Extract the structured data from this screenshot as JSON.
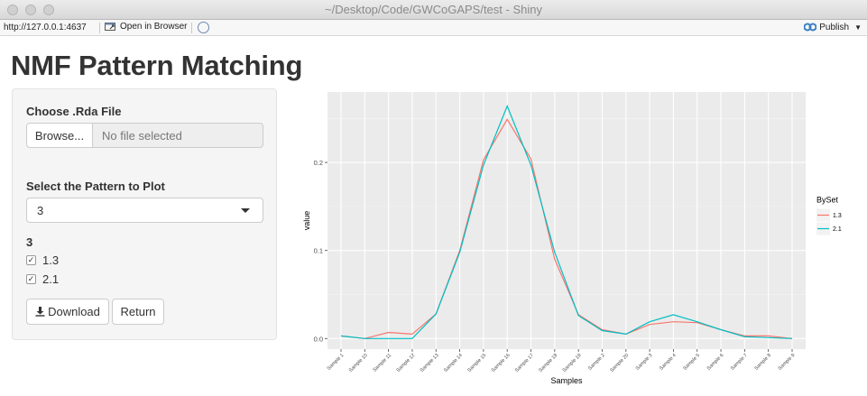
{
  "window": {
    "title": "~/Desktop/Code/GWCoGAPS/test - Shiny"
  },
  "toolbar": {
    "url": "http://127.0.0.1:4637",
    "open_in_browser": "Open in Browser",
    "publish": "Publish"
  },
  "page": {
    "title": "NMF Pattern Matching"
  },
  "sidebar": {
    "file_label": "Choose .Rda File",
    "browse_label": "Browse...",
    "file_placeholder": "No file selected",
    "pattern_label": "Select the Pattern to Plot",
    "pattern_value": "3",
    "group_label": "3",
    "checkboxes": [
      {
        "label": "1.3",
        "checked": true
      },
      {
        "label": "2.1",
        "checked": true
      }
    ],
    "download_label": "Download",
    "return_label": "Return"
  },
  "chart_data": {
    "type": "line",
    "xlabel": "Samples",
    "ylabel": "value",
    "categories": [
      "Sample 1",
      "Sample 10",
      "Sample 11",
      "Sample 12",
      "Sample 13",
      "Sample 14",
      "Sample 15",
      "Sample 16",
      "Sample 17",
      "Sample 18",
      "Sample 19",
      "Sample 2",
      "Sample 20",
      "Sample 3",
      "Sample 4",
      "Sample 5",
      "Sample 6",
      "Sample 7",
      "Sample 8",
      "Sample 9"
    ],
    "yticks": [
      0.0,
      0.1,
      0.2
    ],
    "ytick_labels": [
      "0.0",
      "0.1",
      "0.2"
    ],
    "ylim": [
      -0.012,
      0.28
    ],
    "legend_title": "BySet",
    "legend_position": "right",
    "grid": true,
    "series": [
      {
        "name": "1.3",
        "color": "#F8766D",
        "values": [
          0.003,
          0.0,
          0.007,
          0.005,
          0.028,
          0.1,
          0.203,
          0.249,
          0.204,
          0.09,
          0.027,
          0.01,
          0.005,
          0.016,
          0.019,
          0.018,
          0.01,
          0.003,
          0.003,
          0.0
        ]
      },
      {
        "name": "2.1",
        "color": "#00BFC4",
        "values": [
          0.003,
          0.0,
          0.0,
          0.0,
          0.028,
          0.098,
          0.197,
          0.264,
          0.197,
          0.098,
          0.026,
          0.009,
          0.005,
          0.019,
          0.027,
          0.019,
          0.01,
          0.002,
          0.001,
          0.0
        ]
      }
    ]
  }
}
